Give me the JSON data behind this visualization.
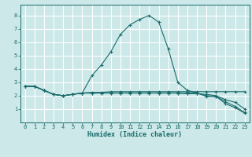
{
  "xlabel": "Humidex (Indice chaleur)",
  "background_color": "#cce8e8",
  "line_color": "#1a6b6b",
  "grid_color": "#ffffff",
  "xlim": [
    -0.5,
    23.5
  ],
  "ylim": [
    0,
    8.8
  ],
  "xticks": [
    0,
    1,
    2,
    3,
    4,
    5,
    6,
    7,
    8,
    9,
    10,
    11,
    12,
    13,
    14,
    15,
    16,
    17,
    18,
    19,
    20,
    21,
    22,
    23
  ],
  "yticks": [
    1,
    2,
    3,
    4,
    5,
    6,
    7,
    8
  ],
  "series": [
    {
      "x": [
        0,
        1,
        2,
        3,
        4,
        5,
        6,
        7,
        8,
        9,
        10,
        11,
        12,
        13,
        14,
        15,
        16,
        17,
        18,
        19,
        20,
        21,
        22,
        23
      ],
      "y": [
        2.7,
        2.7,
        2.4,
        2.1,
        2.0,
        2.1,
        2.2,
        3.5,
        4.3,
        5.3,
        6.6,
        7.3,
        7.7,
        8.0,
        7.5,
        5.5,
        3.0,
        2.4,
        2.2,
        1.95,
        1.95,
        1.4,
        1.1,
        0.7
      ]
    },
    {
      "x": [
        0,
        1,
        2,
        3,
        4,
        5,
        6,
        7,
        8,
        9,
        10,
        11,
        12,
        13,
        14,
        15,
        16,
        17,
        18,
        19,
        20,
        21,
        22,
        23
      ],
      "y": [
        2.7,
        2.7,
        2.4,
        2.1,
        2.0,
        2.1,
        2.2,
        2.25,
        2.25,
        2.3,
        2.3,
        2.3,
        2.3,
        2.3,
        2.3,
        2.3,
        2.3,
        2.3,
        2.3,
        2.3,
        2.3,
        2.3,
        2.3,
        2.3
      ]
    },
    {
      "x": [
        0,
        1,
        2,
        3,
        4,
        5,
        6,
        7,
        8,
        9,
        10,
        11,
        12,
        13,
        14,
        15,
        16,
        17,
        18,
        19,
        20,
        21,
        22,
        23
      ],
      "y": [
        2.7,
        2.7,
        2.4,
        2.1,
        2.0,
        2.1,
        2.2,
        2.2,
        2.2,
        2.2,
        2.2,
        2.2,
        2.2,
        2.2,
        2.2,
        2.2,
        2.2,
        2.2,
        2.2,
        2.0,
        1.95,
        1.55,
        1.2,
        0.75
      ]
    },
    {
      "x": [
        0,
        1,
        2,
        3,
        4,
        5,
        6,
        7,
        8,
        9,
        10,
        11,
        12,
        13,
        14,
        15,
        16,
        17,
        18,
        19,
        20,
        21,
        22,
        23
      ],
      "y": [
        2.7,
        2.7,
        2.4,
        2.1,
        2.0,
        2.1,
        2.2,
        2.2,
        2.2,
        2.2,
        2.2,
        2.2,
        2.2,
        2.2,
        2.2,
        2.2,
        2.2,
        2.15,
        2.15,
        2.1,
        2.0,
        1.7,
        1.5,
        1.0
      ]
    }
  ]
}
